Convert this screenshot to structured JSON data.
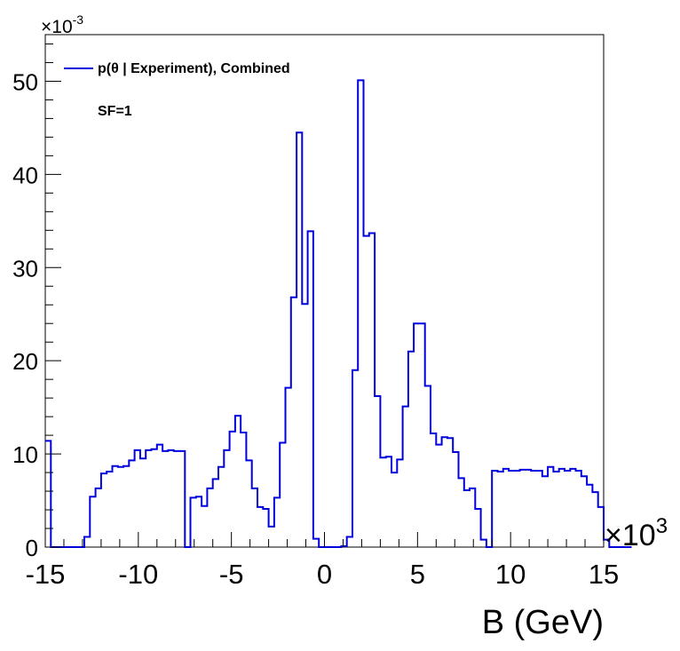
{
  "chart_data": {
    "type": "histogram",
    "xlabel": "B (GeV)",
    "x_multiplier": "×10",
    "x_multiplier_exp": "3",
    "y_multiplier": "×10",
    "y_multiplier_exp": "-3",
    "xlim": [
      -15,
      15
    ],
    "ylim": [
      0,
      55
    ],
    "x_ticks": [
      -15,
      -10,
      -5,
      0,
      5,
      10,
      15
    ],
    "x_tick_labels": [
      "-15",
      "-10",
      "-5",
      "0",
      "5",
      "10",
      "15"
    ],
    "y_ticks": [
      0,
      10,
      20,
      30,
      40,
      50
    ],
    "y_tick_labels": [
      "0",
      "10",
      "20",
      "30",
      "40",
      "50"
    ],
    "bin_width": 0.3,
    "bin_start": -15,
    "series": [
      {
        "name": "p(θ | Experiment), Combined",
        "color": "#0000dd",
        "values": [
          11.4,
          0,
          0,
          0,
          0,
          0,
          0,
          1.1,
          5.4,
          6.3,
          7.9,
          8.1,
          8.7,
          8.6,
          8.7,
          9.3,
          10.4,
          9.5,
          10.4,
          10.5,
          11.0,
          10.3,
          10.4,
          10.3,
          10.3,
          0,
          5.3,
          5.4,
          4.4,
          6.3,
          7.3,
          8.6,
          10.4,
          12.4,
          14.1,
          12.3,
          9.3,
          6.3,
          4.3,
          4.1,
          2.2,
          5.3,
          11.2,
          17.1,
          26.8,
          44.5,
          26.1,
          33.9,
          0.9,
          0,
          0,
          0,
          0,
          0.1,
          1.1,
          19.0,
          50.1,
          33.4,
          33.7,
          16.2,
          9.6,
          9.7,
          8.0,
          9.4,
          15.1,
          21.0,
          24.0,
          24.0,
          17.3,
          12.2,
          11.0,
          11.8,
          11.7,
          10.2,
          7.4,
          6.1,
          6.3,
          4.1,
          0.8,
          0,
          8.2,
          8.1,
          8.4,
          8.2,
          8.2,
          8.3,
          8.3,
          8.2,
          8.2,
          7.6,
          8.6,
          8.1,
          8.4,
          8.2,
          8.4,
          8.2,
          7.6,
          6.7,
          5.9,
          4.3,
          0.8,
          0,
          0,
          0,
          0
        ]
      }
    ],
    "annotations": [
      "SF=1"
    ],
    "legend_position": "top-left",
    "grid": false
  }
}
